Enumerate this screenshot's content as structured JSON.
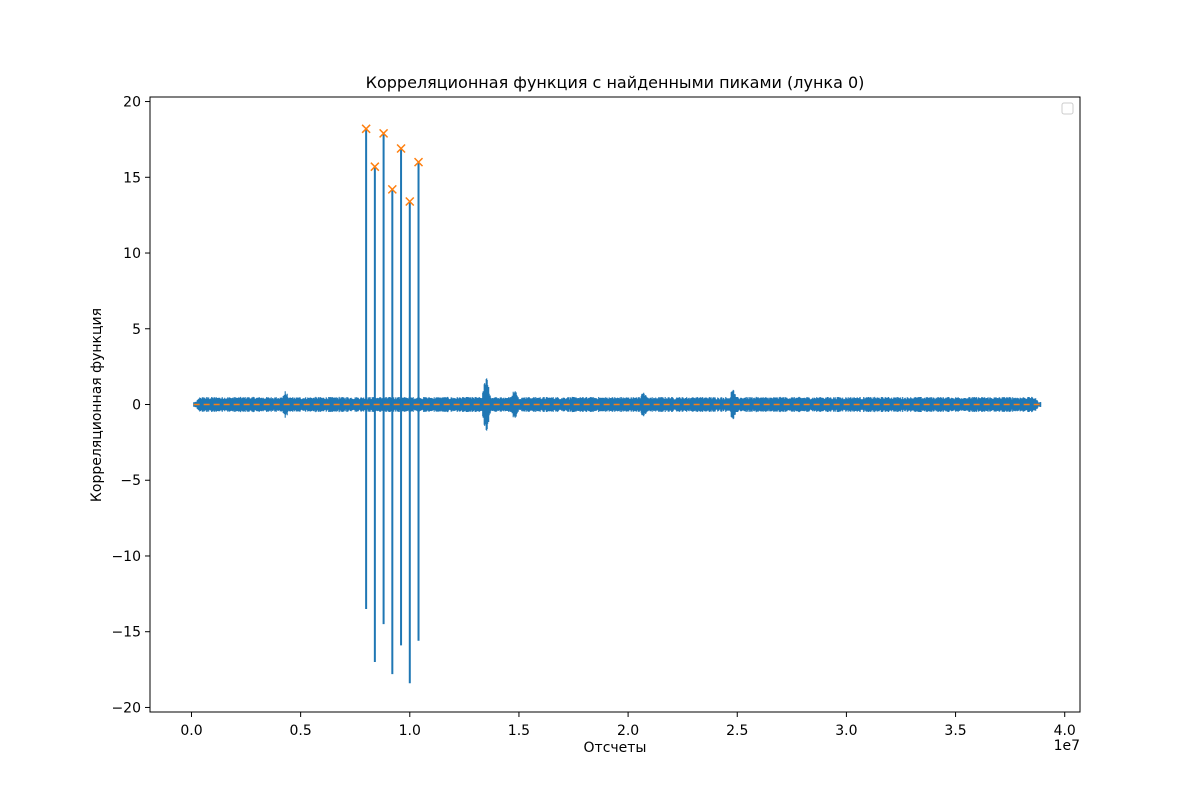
{
  "chart_data": {
    "type": "line",
    "title": "Корреляционная функция с найденными пиками (лунка 0)",
    "xlabel": "Отсчеты",
    "ylabel": "Корреляционная функция",
    "x_offset_label": "1e7",
    "xlim": [
      -1900000.0,
      40700000.0
    ],
    "ylim": [
      -20.3,
      20.3
    ],
    "x_ticks": [
      0,
      5000000,
      10000000,
      15000000,
      20000000,
      25000000,
      30000000,
      35000000,
      40000000
    ],
    "x_tick_labels": [
      "0.0",
      "0.5",
      "1.0",
      "1.5",
      "2.0",
      "2.5",
      "3.0",
      "3.5",
      "4.0"
    ],
    "y_ticks": [
      20,
      15,
      10,
      5,
      0,
      -5,
      -10,
      -15,
      -20
    ],
    "y_tick_labels": [
      "20",
      "15",
      "10",
      "5",
      "0",
      "−5",
      "−10",
      "−15",
      "−20"
    ],
    "grid": false,
    "legend": {
      "position": "top-right",
      "entries": []
    },
    "series": [
      {
        "kind": "signal",
        "color": "#1f77b4",
        "x_range": [
          100000,
          38900000
        ],
        "baseline_noise_amplitude": 0.5,
        "spikes": [
          {
            "x": 8000000,
            "max": 18.2,
            "min": -13.5
          },
          {
            "x": 8400000,
            "max": 15.7,
            "min": -17.0
          },
          {
            "x": 8800000,
            "max": 17.9,
            "min": -14.5
          },
          {
            "x": 9200000,
            "max": 14.2,
            "min": -17.8
          },
          {
            "x": 9600000,
            "max": 16.9,
            "min": -15.9
          },
          {
            "x": 10000000,
            "max": 13.4,
            "min": -18.4
          },
          {
            "x": 10400000,
            "max": 16.0,
            "min": -15.6
          }
        ],
        "bursts": [
          {
            "x": 13500000,
            "max": 1.8,
            "min": -1.7
          },
          {
            "x": 14800000,
            "max": 1.0,
            "min": -1.0
          },
          {
            "x": 4300000,
            "max": 0.9,
            "min": -0.9
          },
          {
            "x": 24800000,
            "max": 1.0,
            "min": -1.1
          },
          {
            "x": 20700000,
            "max": 0.9,
            "min": -0.9
          }
        ]
      },
      {
        "kind": "threshold",
        "color": "#ff7f0e",
        "style": "dashed",
        "y": 0
      },
      {
        "kind": "peaks",
        "color": "#ff7f0e",
        "marker": "x",
        "points": [
          {
            "x": 8000000,
            "y": 18.2
          },
          {
            "x": 8400000,
            "y": 15.7
          },
          {
            "x": 8800000,
            "y": 17.9
          },
          {
            "x": 9200000,
            "y": 14.2
          },
          {
            "x": 9600000,
            "y": 16.9
          },
          {
            "x": 10000000,
            "y": 13.4
          },
          {
            "x": 10400000,
            "y": 16.0
          }
        ]
      }
    ]
  }
}
